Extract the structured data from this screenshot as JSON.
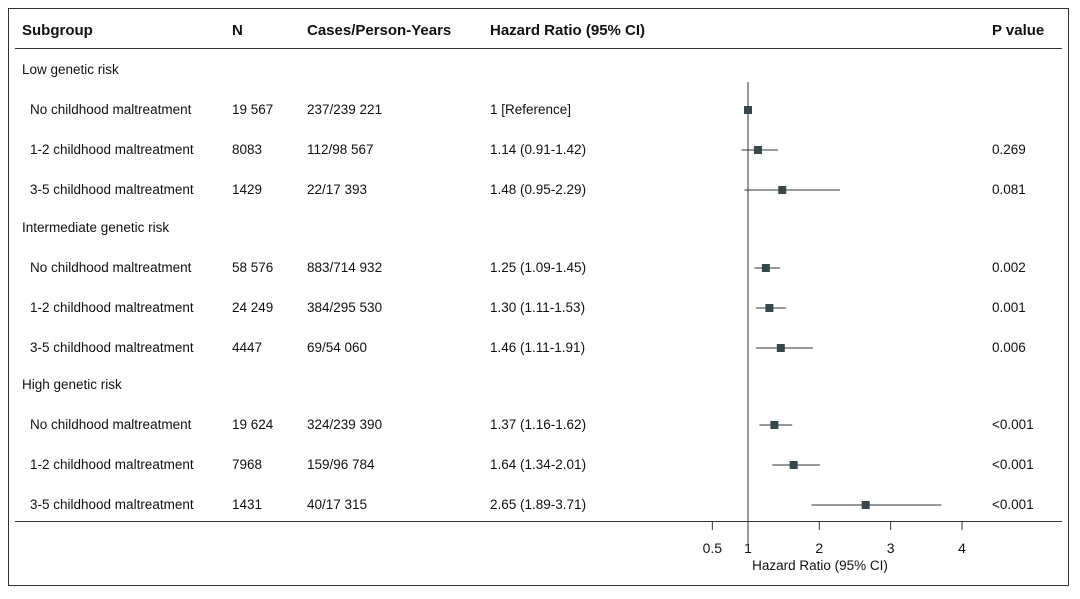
{
  "header": {
    "subgroup": "Subgroup",
    "n": "N",
    "cases": "Cases/Person-Years",
    "hr": "Hazard Ratio (95% CI)",
    "p": "P value"
  },
  "groups": [
    {
      "label": "Low genetic risk",
      "rows": [
        {
          "subgroup": "No childhood maltreatment",
          "n": "19 567",
          "cases": "237/239 221",
          "hr_text": "1 [Reference]",
          "p": ""
        },
        {
          "subgroup": "1-2 childhood maltreatment",
          "n": "8083",
          "cases": "112/98 567",
          "hr_text": "1.14 (0.91-1.42)",
          "p": "0.269"
        },
        {
          "subgroup": "3-5 childhood maltreatment",
          "n": "1429",
          "cases": "22/17 393",
          "hr_text": "1.48 (0.95-2.29)",
          "p": "0.081"
        }
      ]
    },
    {
      "label": "Intermediate genetic risk",
      "rows": [
        {
          "subgroup": "No childhood maltreatment",
          "n": "58 576",
          "cases": "883/714 932",
          "hr_text": "1.25 (1.09-1.45)",
          "p": "0.002"
        },
        {
          "subgroup": "1-2 childhood maltreatment",
          "n": "24 249",
          "cases": "384/295 530",
          "hr_text": "1.30 (1.11-1.53)",
          "p": "0.001"
        },
        {
          "subgroup": "3-5 childhood maltreatment",
          "n": "4447",
          "cases": "69/54 060",
          "hr_text": "1.46 (1.11-1.91)",
          "p": "0.006"
        }
      ]
    },
    {
      "label": "High genetic risk",
      "rows": [
        {
          "subgroup": "No childhood maltreatment",
          "n": "19 624",
          "cases": "324/239 390",
          "hr_text": "1.37 (1.16-1.62)",
          "p": "<0.001"
        },
        {
          "subgroup": "1-2 childhood maltreatment",
          "n": "7968",
          "cases": "159/96 784",
          "hr_text": "1.64 (1.34-2.01)",
          "p": "<0.001"
        },
        {
          "subgroup": "3-5 childhood maltreatment",
          "n": "1431",
          "cases": "40/17 315",
          "hr_text": "2.65 (1.89-3.71)",
          "p": "<0.001"
        }
      ]
    }
  ],
  "chart_data": {
    "type": "forest",
    "xlabel": "Hazard Ratio (95% CI)",
    "x_ticks": [
      "0.5",
      "1",
      "2",
      "3",
      "4"
    ],
    "x_tick_values": [
      0.5,
      1,
      2,
      3,
      4
    ],
    "reference_line": 1,
    "points": [
      {
        "hr": 1.0,
        "lo": null,
        "hi": null
      },
      {
        "hr": 1.14,
        "lo": 0.91,
        "hi": 1.42
      },
      {
        "hr": 1.48,
        "lo": 0.95,
        "hi": 2.29
      },
      {
        "hr": 1.25,
        "lo": 1.09,
        "hi": 1.45
      },
      {
        "hr": 1.3,
        "lo": 1.11,
        "hi": 1.53
      },
      {
        "hr": 1.46,
        "lo": 1.11,
        "hi": 1.91
      },
      {
        "hr": 1.37,
        "lo": 1.16,
        "hi": 1.62
      },
      {
        "hr": 1.64,
        "lo": 1.34,
        "hi": 2.01
      },
      {
        "hr": 2.65,
        "lo": 1.89,
        "hi": 3.71
      }
    ]
  },
  "colors": {
    "marker": "#37474a",
    "line": "#333333"
  }
}
